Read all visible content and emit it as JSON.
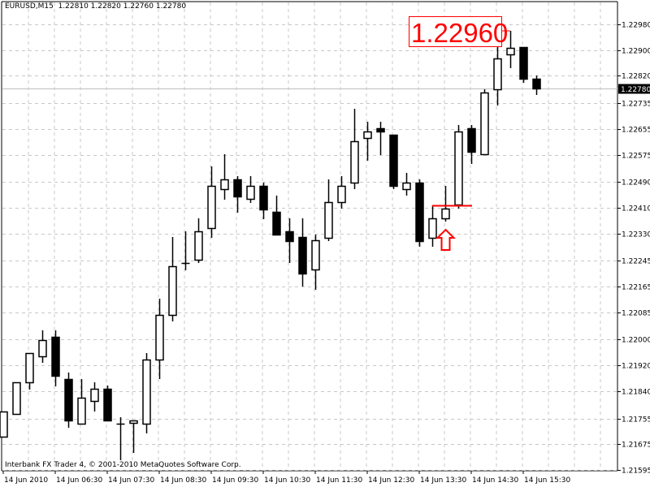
{
  "header": {
    "symbol": "EURUSD,M15",
    "open": "1.22810",
    "high": "1.22820",
    "low": "1.22760",
    "close": "1.22780"
  },
  "footer": {
    "copyright": "Interbank FX Trader 4, © 2001-2010 MetaQuotes Software Corp."
  },
  "colors": {
    "bull_fill": "#ffffff",
    "bear_fill": "#000000",
    "grid": "#c8c8c8",
    "annotation": "#ff0000",
    "current_price_bg": "#000000"
  },
  "chart_data": {
    "type": "candlestick",
    "ylim": [
      1.21595,
      1.2298
    ],
    "grid": true,
    "y_ticks": [
      "1.22980",
      "1.22900",
      "1.22820",
      "1.22735",
      "1.22655",
      "1.22575",
      "1.22490",
      "1.22410",
      "1.22330",
      "1.22245",
      "1.22165",
      "1.22085",
      "1.22000",
      "1.21920",
      "1.21840",
      "1.21755",
      "1.21675",
      "1.21595"
    ],
    "x_ticks": [
      {
        "label": "14 Jun 2010",
        "candle": 0
      },
      {
        "label": "14 Jun 06:30",
        "candle": 4
      },
      {
        "label": "14 Jun 07:30",
        "candle": 8
      },
      {
        "label": "14 Jun 08:30",
        "candle": 12
      },
      {
        "label": "14 Jun 09:30",
        "candle": 16
      },
      {
        "label": "14 Jun 10:30",
        "candle": 20
      },
      {
        "label": "14 Jun 11:30",
        "candle": 24
      },
      {
        "label": "14 Jun 12:30",
        "candle": 28
      },
      {
        "label": "14 Jun 13:30",
        "candle": 32
      },
      {
        "label": "14 Jun 14:30",
        "candle": 36
      },
      {
        "label": "14 Jun 15:30",
        "candle": 40
      }
    ],
    "current_price": "1.22780",
    "candles": [
      [
        1.21698,
        1.21777,
        1.21698,
        1.21777
      ],
      [
        1.21769,
        1.21867,
        1.21769,
        1.21867
      ],
      [
        1.21867,
        1.21958,
        1.21845,
        1.21958
      ],
      [
        1.21948,
        1.22029,
        1.21928,
        1.21999
      ],
      [
        1.22009,
        1.22029,
        1.21855,
        1.21888
      ],
      [
        1.21877,
        1.21898,
        1.21726,
        1.21749
      ],
      [
        1.21739,
        1.21877,
        1.21739,
        1.21819
      ],
      [
        1.21809,
        1.21867,
        1.21777,
        1.21847
      ],
      [
        1.21847,
        1.21857,
        1.21749,
        1.21749
      ],
      [
        1.21739,
        1.21759,
        1.21625,
        1.21739
      ],
      [
        1.21741,
        1.21749,
        1.21648,
        1.21749
      ],
      [
        1.21739,
        1.21958,
        1.21708,
        1.21938
      ],
      [
        1.21938,
        1.22127,
        1.21877,
        1.22077
      ],
      [
        1.22077,
        1.22319,
        1.22057,
        1.22228
      ],
      [
        1.22238,
        1.22337,
        1.22216,
        1.22238
      ],
      [
        1.22248,
        1.22377,
        1.22238,
        1.22337
      ],
      [
        1.22347,
        1.22538,
        1.22316,
        1.22478
      ],
      [
        1.22468,
        1.22576,
        1.22435,
        1.22498
      ],
      [
        1.22498,
        1.22508,
        1.22395,
        1.22445
      ],
      [
        1.22438,
        1.22508,
        1.22425,
        1.22478
      ],
      [
        1.22478,
        1.22488,
        1.22375,
        1.22405
      ],
      [
        1.22397,
        1.22448,
        1.22327,
        1.22327
      ],
      [
        1.22337,
        1.22377,
        1.22238,
        1.22306
      ],
      [
        1.22319,
        1.22377,
        1.22165,
        1.22205
      ],
      [
        1.22218,
        1.22327,
        1.22155,
        1.22309
      ],
      [
        1.22316,
        1.22498,
        1.22306,
        1.22427
      ],
      [
        1.22427,
        1.22508,
        1.22407,
        1.22478
      ],
      [
        1.22488,
        1.22718,
        1.22468,
        1.22617
      ],
      [
        1.22627,
        1.22677,
        1.22556,
        1.22647
      ],
      [
        1.22657,
        1.22677,
        1.22574,
        1.22647
      ],
      [
        1.22637,
        1.22637,
        1.22468,
        1.22478
      ],
      [
        1.22468,
        1.22518,
        1.22448,
        1.22488
      ],
      [
        1.22488,
        1.22498,
        1.22289,
        1.22306
      ],
      [
        1.22316,
        1.22417,
        1.22289,
        1.22377
      ],
      [
        1.22377,
        1.22478,
        1.22367,
        1.22407
      ],
      [
        1.2242,
        1.22667,
        1.22407,
        1.22647
      ],
      [
        1.22657,
        1.22667,
        1.22546,
        1.22584
      ],
      [
        1.22576,
        1.22778,
        1.22576,
        1.22768
      ],
      [
        1.22778,
        1.22909,
        1.22728,
        1.22874
      ],
      [
        1.22887,
        1.2296,
        1.22844,
        1.22907
      ],
      [
        1.22909,
        1.22909,
        1.22798,
        1.2281
      ],
      [
        1.2281,
        1.2282,
        1.2276,
        1.2278
      ]
    ],
    "annotations": {
      "high_label": "1.22960",
      "high_candle": 39,
      "resistance_line": {
        "price": 1.22417,
        "from_candle": 33,
        "to_candle": 36
      },
      "up_arrow": {
        "candle": 34,
        "price": 1.22342
      }
    }
  }
}
